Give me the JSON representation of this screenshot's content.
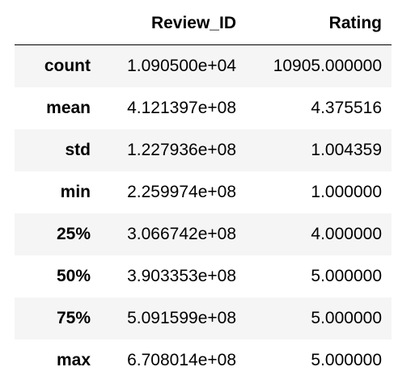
{
  "table": {
    "index_header": "",
    "columns": [
      "Review_ID",
      "Rating"
    ],
    "rows": [
      {
        "label": "count",
        "review_id": "1.090500e+04",
        "rating": "10905.000000"
      },
      {
        "label": "mean",
        "review_id": "4.121397e+08",
        "rating": "4.375516"
      },
      {
        "label": "std",
        "review_id": "1.227936e+08",
        "rating": "1.004359"
      },
      {
        "label": "min",
        "review_id": "2.259974e+08",
        "rating": "1.000000"
      },
      {
        "label": "25%",
        "review_id": "3.066742e+08",
        "rating": "4.000000"
      },
      {
        "label": "50%",
        "review_id": "3.903353e+08",
        "rating": "5.000000"
      },
      {
        "label": "75%",
        "review_id": "5.091599e+08",
        "rating": "5.000000"
      },
      {
        "label": "max",
        "review_id": "6.708014e+08",
        "rating": "5.000000"
      }
    ]
  },
  "colors": {
    "stripe": "#f5f5f5",
    "background": "#ffffff",
    "text": "#000000"
  }
}
